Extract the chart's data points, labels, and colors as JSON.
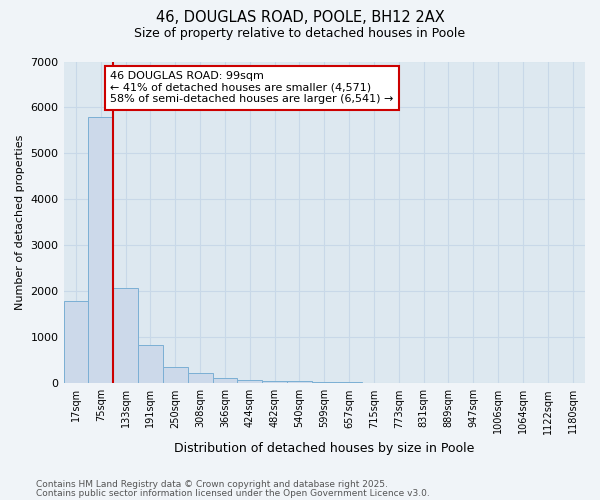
{
  "title1": "46, DOUGLAS ROAD, POOLE, BH12 2AX",
  "title2": "Size of property relative to detached houses in Poole",
  "xlabel": "Distribution of detached houses by size in Poole",
  "ylabel": "Number of detached properties",
  "categories": [
    "17sqm",
    "75sqm",
    "133sqm",
    "191sqm",
    "250sqm",
    "308sqm",
    "366sqm",
    "424sqm",
    "482sqm",
    "540sqm",
    "599sqm",
    "657sqm",
    "715sqm",
    "773sqm",
    "831sqm",
    "889sqm",
    "947sqm",
    "1006sqm",
    "1064sqm",
    "1122sqm",
    "1180sqm"
  ],
  "values": [
    1800,
    5800,
    2080,
    830,
    360,
    220,
    110,
    75,
    55,
    40,
    30,
    22,
    0,
    0,
    0,
    0,
    0,
    0,
    0,
    0,
    0
  ],
  "bar_color": "#ccd9ea",
  "bar_edge_color": "#7bafd4",
  "red_line_index": 1,
  "annotation_title": "46 DOUGLAS ROAD: 99sqm",
  "annotation_line2": "← 41% of detached houses are smaller (4,571)",
  "annotation_line3": "58% of semi-detached houses are larger (6,541) →",
  "annotation_box_color": "#ffffff",
  "annotation_border_color": "#cc0000",
  "vline_color": "#cc0000",
  "ylim": [
    0,
    7000
  ],
  "yticks": [
    0,
    1000,
    2000,
    3000,
    4000,
    5000,
    6000,
    7000
  ],
  "grid_color": "#c8d8e8",
  "plot_bg_color": "#dde8f0",
  "fig_bg_color": "#f0f4f8",
  "footnote1": "Contains HM Land Registry data © Crown copyright and database right 2025.",
  "footnote2": "Contains public sector information licensed under the Open Government Licence v3.0."
}
